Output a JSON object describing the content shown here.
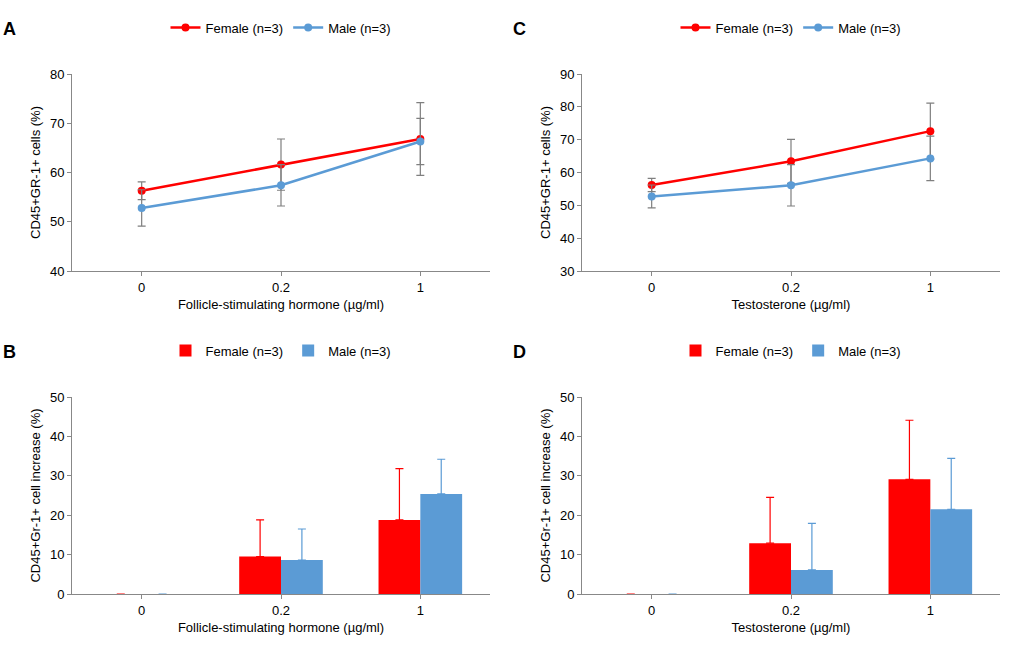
{
  "chart_data": [
    {
      "type": "line",
      "title": "A",
      "categories": [
        "0",
        "0.2",
        "1"
      ],
      "xlabel": "Follicle-stimulating hormone (µg/ml)",
      "ylabel": "CD45+GR-1+ cells (%)",
      "ylim": [
        40,
        80
      ],
      "yticks": [
        40,
        50,
        60,
        70,
        80
      ],
      "grid": false,
      "legend": "top",
      "series": [
        {
          "name": "Female (n=3)",
          "color": "#ff0000",
          "marker": "circle",
          "values": [
            56.3,
            61.6,
            66.8
          ],
          "errors": [
            1.8,
            5.2,
            7.4
          ]
        },
        {
          "name": "Male (n=3)",
          "color": "#5b9bd5",
          "marker": "circle",
          "values": [
            52.8,
            57.4,
            66.3
          ],
          "errors": [
            3.7,
            4.2,
            4.7
          ]
        }
      ]
    },
    {
      "type": "line",
      "title": "C",
      "categories": [
        "0",
        "0.2",
        "1"
      ],
      "xlabel": "Testosterone (µg/ml)",
      "ylabel": "CD45+GR-1+ cells (%)",
      "ylim": [
        30,
        90
      ],
      "yticks": [
        30,
        40,
        50,
        60,
        70,
        80,
        90
      ],
      "grid": false,
      "legend": "top",
      "series": [
        {
          "name": "Female (n=3)",
          "color": "#ff0000",
          "marker": "circle",
          "values": [
            56.2,
            63.4,
            72.6
          ],
          "errors": [
            2.0,
            6.7,
            8.5
          ]
        },
        {
          "name": "Male (n=3)",
          "color": "#5b9bd5",
          "marker": "circle",
          "values": [
            52.7,
            56.1,
            64.3
          ],
          "errors": [
            3.5,
            6.3,
            6.8
          ]
        }
      ]
    },
    {
      "type": "bar",
      "title": "B",
      "categories": [
        "0",
        "0.2",
        "1"
      ],
      "xlabel": "Follicle-stimulating hormone (µg/ml)",
      "ylabel": "CD45+Gr-1+ cell increase (%)",
      "ylim": [
        0,
        50
      ],
      "yticks": [
        0,
        10,
        20,
        30,
        40,
        50
      ],
      "grid": false,
      "legend": "top",
      "series": [
        {
          "name": "Female (n=3)",
          "color": "#ff0000",
          "values": [
            0,
            9.5,
            18.8
          ],
          "errors": [
            null,
            9.3,
            13.0
          ]
        },
        {
          "name": "Male (n=3)",
          "color": "#5b9bd5",
          "values": [
            0,
            8.6,
            25.4
          ],
          "errors": [
            null,
            7.9,
            8.8
          ]
        }
      ]
    },
    {
      "type": "bar",
      "title": "D",
      "categories": [
        "0",
        "0.2",
        "1"
      ],
      "xlabel": "Testosterone (µg/ml)",
      "ylabel": "CD45+Gr-1+ cell increase (%)",
      "ylim": [
        0,
        50
      ],
      "yticks": [
        0,
        10,
        20,
        30,
        40,
        50
      ],
      "grid": false,
      "legend": "top",
      "series": [
        {
          "name": "Female (n=3)",
          "color": "#ff0000",
          "values": [
            0,
            12.9,
            29.1
          ],
          "errors": [
            null,
            11.6,
            15.0
          ]
        },
        {
          "name": "Male (n=3)",
          "color": "#5b9bd5",
          "values": [
            0,
            6.1,
            21.5
          ],
          "errors": [
            null,
            11.8,
            12.9
          ]
        }
      ]
    }
  ]
}
